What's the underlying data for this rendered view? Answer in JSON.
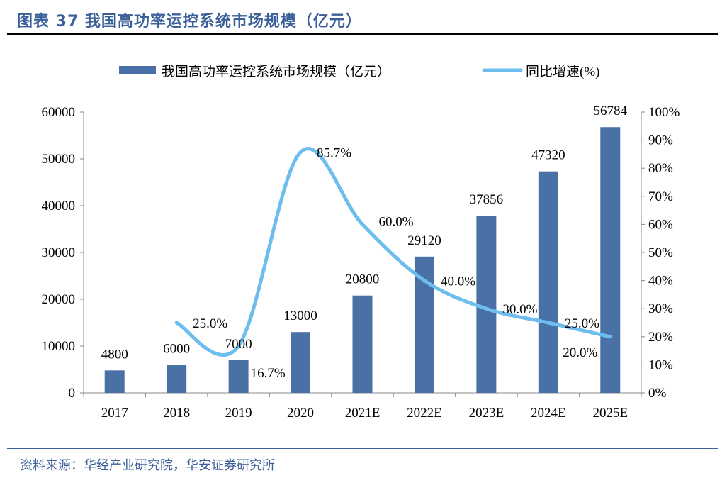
{
  "title": "图表 37 我国高功率运控系统市场规模（亿元）",
  "source": "资料来源：华经产业研究院，华安证券研究所",
  "chart_data": {
    "type": "bar+line",
    "categories": [
      "2017",
      "2018",
      "2019",
      "2020",
      "2021E",
      "2022E",
      "2023E",
      "2024E",
      "2025E"
    ],
    "series": [
      {
        "name": "我国高功率运控系统市场规模（亿元）",
        "type": "bar",
        "axis": "left",
        "color": "#4a71a6",
        "values": [
          4800,
          6000,
          7000,
          13000,
          20800,
          29120,
          37856,
          47320,
          56784
        ]
      },
      {
        "name": "同比增速(%)",
        "type": "line",
        "axis": "right",
        "color": "#6dbdee",
        "values": [
          null,
          25.0,
          16.7,
          85.7,
          60.0,
          40.0,
          30.0,
          25.0,
          20.0
        ]
      }
    ],
    "left_axis": {
      "range": [
        0,
        60000
      ],
      "ticks": [
        "0",
        "10000",
        "20000",
        "30000",
        "40000",
        "50000",
        "60000"
      ]
    },
    "right_axis": {
      "range": [
        0,
        100
      ],
      "ticks": [
        "0%",
        "10%",
        "20%",
        "30%",
        "40%",
        "50%",
        "60%",
        "70%",
        "80%",
        "90%",
        "100%"
      ]
    },
    "bar_labels": [
      "4800",
      "6000",
      "7000",
      "13000",
      "20800",
      "29120",
      "37856",
      "47320",
      "56784"
    ],
    "line_labels": [
      "",
      "25.0%",
      "16.7%",
      "85.7%",
      "60.0%",
      "40.0%",
      "30.0%",
      "25.0%",
      "20.0%"
    ],
    "legend_placement": "top",
    "grid": false
  }
}
